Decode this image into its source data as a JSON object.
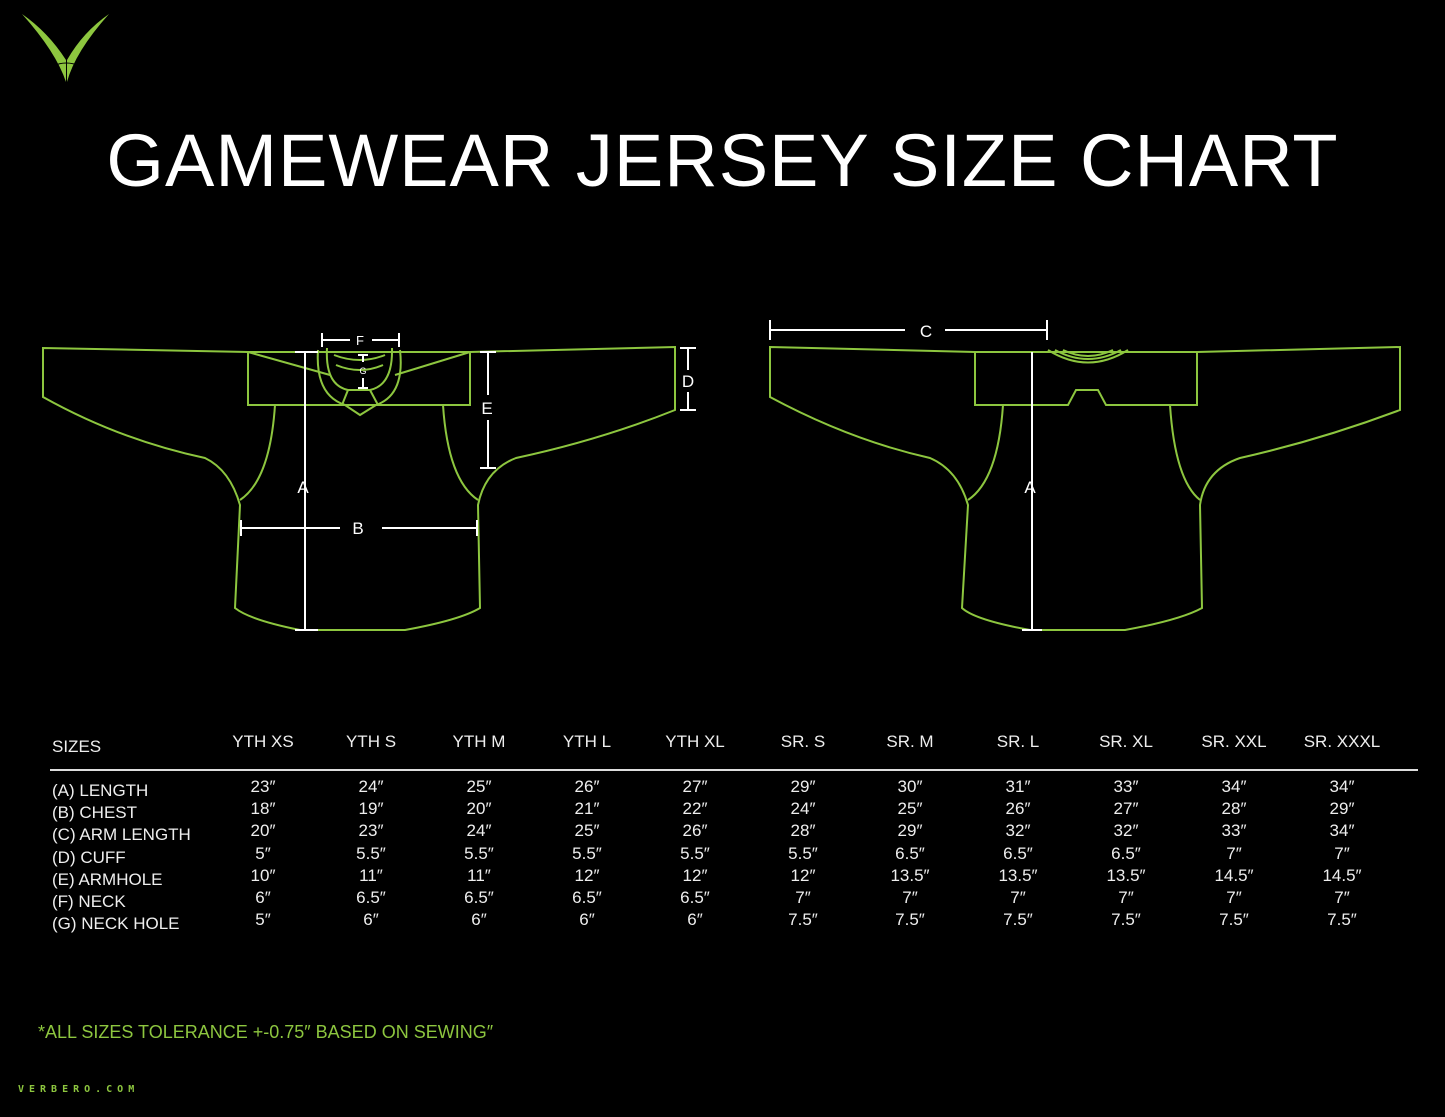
{
  "brand": {
    "name": "VERBERO",
    "accent": "#8dc63f",
    "site": "VERBERO.COM"
  },
  "title": "GAMEWEAR JERSEY SIZE CHART",
  "diagram": {
    "front_labels": {
      "A": "A",
      "B": "B",
      "D": "D",
      "E": "E",
      "F": "F",
      "G": "G"
    },
    "back_labels": {
      "A": "A",
      "C": "C"
    },
    "outline_color": "#8dc63f",
    "dimension_color": "#ffffff"
  },
  "table": {
    "header_label": "SIZES",
    "sizes": [
      "YTH XS",
      "YTH S",
      "YTH M",
      "YTH L",
      "YTH XL",
      "SR. S",
      "SR. M",
      "SR. L",
      "SR. XL",
      "SR. XXL",
      "SR. XXXL"
    ],
    "rows": [
      {
        "label": "(A) LENGTH",
        "values": [
          "23″",
          "24″",
          "25″",
          "26″",
          "27″",
          "29″",
          "30″",
          "31″",
          "33″",
          "34″",
          "34″"
        ]
      },
      {
        "label": "(B) CHEST",
        "values": [
          "18″",
          "19″",
          "20″",
          "21″",
          "22″",
          "24″",
          "25″",
          "26″",
          "27″",
          "28″",
          "29″"
        ]
      },
      {
        "label": "(C) ARM LENGTH",
        "values": [
          "20″",
          "23″",
          "24″",
          "25″",
          "26″",
          "28″",
          "29″",
          "32″",
          "32″",
          "33″",
          "34″"
        ]
      },
      {
        "label": "(D) CUFF",
        "values": [
          "5″",
          "5.5″",
          "5.5″",
          "5.5″",
          "5.5″",
          "5.5″",
          "6.5″",
          "6.5″",
          "6.5″",
          "7″",
          "7″"
        ]
      },
      {
        "label": "(E) ARMHOLE",
        "values": [
          "10″",
          "11″",
          "11″",
          "12″",
          "12″",
          "12″",
          "13.5″",
          "13.5″",
          "13.5″",
          "14.5″",
          "14.5″"
        ]
      },
      {
        "label": "(F) NECK",
        "values": [
          "6″",
          "6.5″",
          "6.5″",
          "6.5″",
          "6.5″",
          "7″",
          "7″",
          "7″",
          "7″",
          "7″",
          "7″"
        ]
      },
      {
        "label": "(G) NECK HOLE",
        "values": [
          "5″",
          "6″",
          "6″",
          "6″",
          "6″",
          "7.5″",
          "7.5″",
          "7.5″",
          "7.5″",
          "7.5″",
          "7.5″"
        ]
      }
    ]
  },
  "note": "*ALL SIZES TOLERANCE +-0.75″ BASED ON SEWING″"
}
